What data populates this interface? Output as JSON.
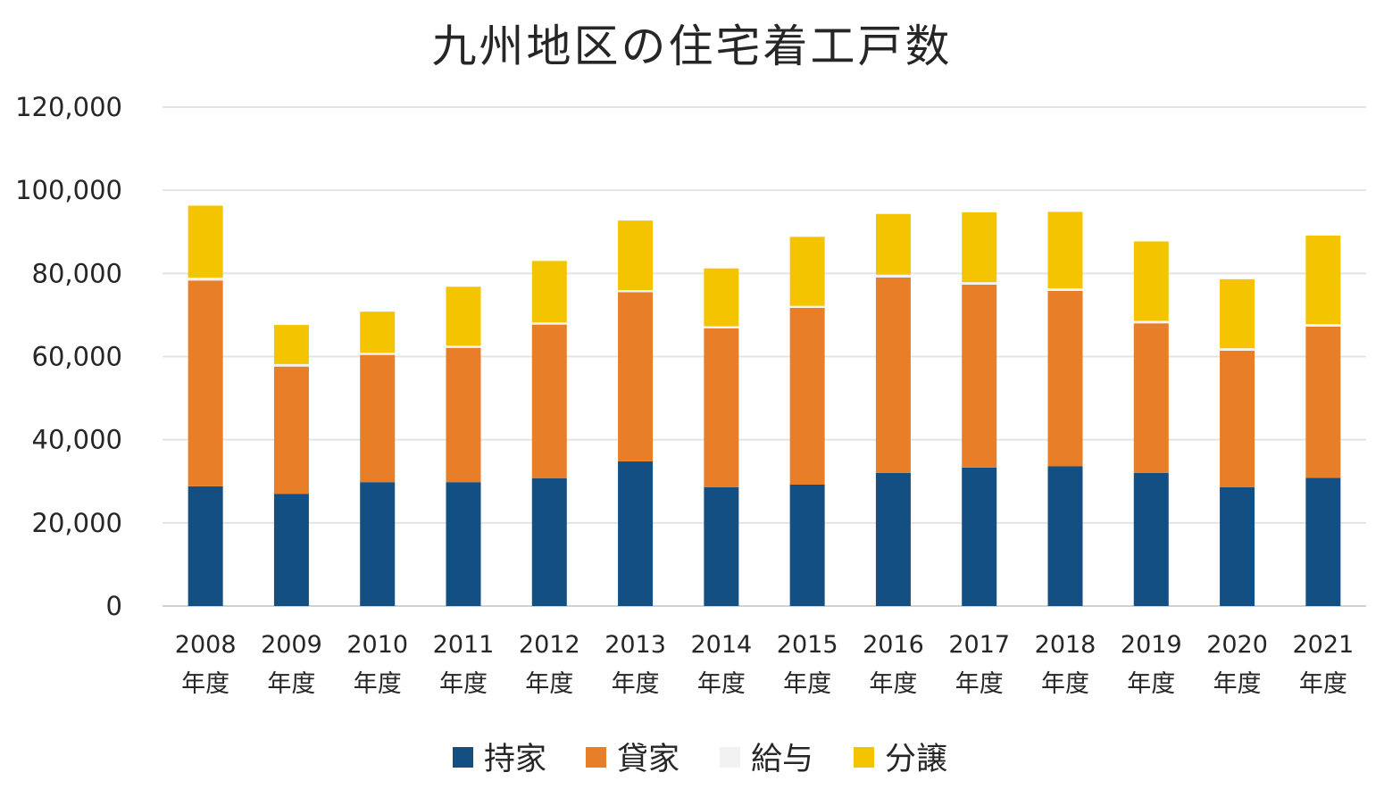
{
  "chart_data": {
    "type": "bar",
    "stacked": true,
    "title": "九州地区の住宅着工戸数",
    "xlabel": "",
    "ylabel": "",
    "ylim": [
      0,
      120000
    ],
    "yticks": [
      0,
      20000,
      40000,
      60000,
      80000,
      100000,
      120000
    ],
    "ytick_labels": [
      "0",
      "20,000",
      "40,000",
      "60,000",
      "80,000",
      "100,000",
      "120,000"
    ],
    "grid": true,
    "legend_position": "bottom",
    "categories": [
      [
        "2008",
        "年度"
      ],
      [
        "2009",
        "年度"
      ],
      [
        "2010",
        "年度"
      ],
      [
        "2011",
        "年度"
      ],
      [
        "2012",
        "年度"
      ],
      [
        "2013",
        "年度"
      ],
      [
        "2014",
        "年度"
      ],
      [
        "2015",
        "年度"
      ],
      [
        "2016",
        "年度"
      ],
      [
        "2017",
        "年度"
      ],
      [
        "2018",
        "年度"
      ],
      [
        "2019",
        "年度"
      ],
      [
        "2020",
        "年度"
      ],
      [
        "2021",
        "年度"
      ]
    ],
    "series": [
      {
        "name": "持家",
        "color": "#144f84",
        "values": [
          28800,
          27000,
          29800,
          29800,
          30700,
          34800,
          28600,
          29200,
          32000,
          33300,
          33600,
          32000,
          28600,
          30800
        ]
      },
      {
        "name": "貸家",
        "color": "#e97e28",
        "values": [
          49500,
          30600,
          30600,
          32300,
          37000,
          40700,
          38200,
          42500,
          47000,
          44000,
          42200,
          36000,
          32800,
          36400
        ]
      },
      {
        "name": "給与",
        "color": "#f2f2f2",
        "values": [
          700,
          600,
          500,
          500,
          500,
          500,
          500,
          500,
          700,
          600,
          600,
          600,
          600,
          600
        ]
      },
      {
        "name": "分譲",
        "color": "#f5c400",
        "values": [
          17300,
          9400,
          9900,
          14200,
          14800,
          16700,
          13900,
          16600,
          14600,
          16800,
          18400,
          19100,
          16600,
          21300
        ]
      }
    ]
  }
}
